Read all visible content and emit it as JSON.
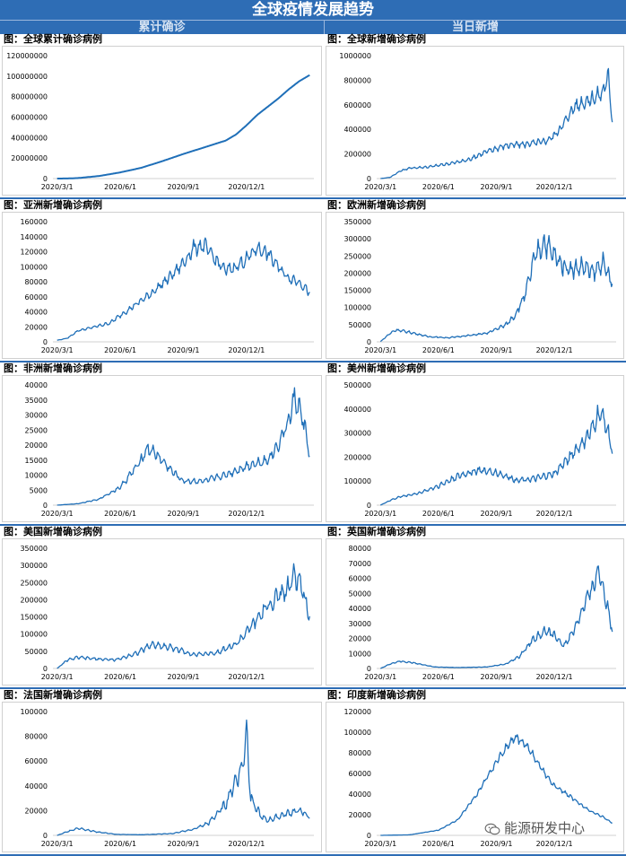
{
  "header": {
    "title": "全球疫情发展趋势",
    "left_section": "累计确诊",
    "right_section": "当日新增"
  },
  "watermark": {
    "text": "能源研发中心",
    "icon": "wechat-icon"
  },
  "colors": {
    "line": "#1f6fb8",
    "header_bg": "#2e6db5"
  },
  "charts": [
    {
      "title": "图：全球累计确诊病例",
      "chart_data": {
        "type": "line",
        "x_ticks": [
          "2020/3/1",
          "2020/6/1",
          "2020/9/1",
          "2020/12/1"
        ],
        "y_ticks": [
          "0",
          "20000000",
          "40000000",
          "60000000",
          "80000000",
          "100000000",
          "120000000"
        ],
        "ylim": [
          0,
          120000000
        ],
        "points": [
          [
            0,
            0
          ],
          [
            0.05,
            90000
          ],
          [
            0.1,
            500000
          ],
          [
            0.2,
            2500000
          ],
          [
            0.3,
            6000000
          ],
          [
            0.4,
            10500000
          ],
          [
            0.5,
            17000000
          ],
          [
            0.6,
            24000000
          ],
          [
            0.7,
            30500000
          ],
          [
            0.8,
            37000000
          ],
          [
            0.85,
            43000000
          ],
          [
            0.9,
            52000000
          ],
          [
            0.95,
            62000000
          ],
          [
            1.0,
            70000000
          ],
          [
            1.05,
            78000000
          ],
          [
            1.1,
            87000000
          ],
          [
            1.15,
            95000000
          ],
          [
            1.2,
            101000000
          ]
        ],
        "noise": 0
      }
    },
    {
      "title": "图：全球新增确诊病例",
      "chart_data": {
        "type": "line",
        "x_ticks": [
          "2020/3/1",
          "2020/6/1",
          "2020/9/1",
          "2020/12/1"
        ],
        "y_ticks": [
          "0",
          "200000",
          "400000",
          "600000",
          "800000",
          "1000000"
        ],
        "ylim": [
          0,
          1000000
        ],
        "points": [
          [
            0,
            0
          ],
          [
            0.05,
            10000
          ],
          [
            0.1,
            60000
          ],
          [
            0.15,
            85000
          ],
          [
            0.25,
            95000
          ],
          [
            0.35,
            120000
          ],
          [
            0.45,
            150000
          ],
          [
            0.55,
            220000
          ],
          [
            0.65,
            270000
          ],
          [
            0.75,
            280000
          ],
          [
            0.85,
            300000
          ],
          [
            0.9,
            350000
          ],
          [
            0.95,
            450000
          ],
          [
            1.0,
            580000
          ],
          [
            1.05,
            620000
          ],
          [
            1.1,
            650000
          ],
          [
            1.15,
            700000
          ],
          [
            1.18,
            830000
          ],
          [
            1.2,
            480000
          ]
        ],
        "noise": 0.12
      }
    },
    {
      "title": "图：亚洲新增确诊病例",
      "chart_data": {
        "type": "line",
        "x_ticks": [
          "2020/3/1",
          "2020/6/1",
          "2020/9/1",
          "2020/12/1"
        ],
        "y_ticks": [
          "0",
          "20000",
          "40000",
          "60000",
          "80000",
          "100000",
          "120000",
          "140000",
          "160000"
        ],
        "ylim": [
          0,
          160000
        ],
        "points": [
          [
            0,
            2000
          ],
          [
            0.05,
            5000
          ],
          [
            0.1,
            15000
          ],
          [
            0.15,
            18000
          ],
          [
            0.25,
            25000
          ],
          [
            0.35,
            45000
          ],
          [
            0.45,
            65000
          ],
          [
            0.55,
            90000
          ],
          [
            0.6,
            105000
          ],
          [
            0.65,
            125000
          ],
          [
            0.7,
            128000
          ],
          [
            0.75,
            110000
          ],
          [
            0.8,
            95000
          ],
          [
            0.85,
            100000
          ],
          [
            0.9,
            110000
          ],
          [
            0.95,
            125000
          ],
          [
            1.0,
            118000
          ],
          [
            1.05,
            100000
          ],
          [
            1.1,
            85000
          ],
          [
            1.15,
            80000
          ],
          [
            1.2,
            65000
          ]
        ],
        "noise": 0.1
      }
    },
    {
      "title": "图：欧洲新增确诊病例",
      "chart_data": {
        "type": "line",
        "x_ticks": [
          "2020/3/1",
          "2020/6/1",
          "2020/9/1",
          "2020/12/1"
        ],
        "y_ticks": [
          "0",
          "50000",
          "100000",
          "150000",
          "200000",
          "250000",
          "300000",
          "350000"
        ],
        "ylim": [
          0,
          350000
        ],
        "points": [
          [
            0,
            1000
          ],
          [
            0.05,
            25000
          ],
          [
            0.08,
            35000
          ],
          [
            0.15,
            28000
          ],
          [
            0.25,
            15000
          ],
          [
            0.35,
            12000
          ],
          [
            0.45,
            18000
          ],
          [
            0.55,
            25000
          ],
          [
            0.65,
            50000
          ],
          [
            0.7,
            80000
          ],
          [
            0.75,
            140000
          ],
          [
            0.8,
            250000
          ],
          [
            0.85,
            290000
          ],
          [
            0.9,
            250000
          ],
          [
            0.95,
            220000
          ],
          [
            1.0,
            210000
          ],
          [
            1.05,
            220000
          ],
          [
            1.1,
            200000
          ],
          [
            1.15,
            230000
          ],
          [
            1.2,
            170000
          ]
        ],
        "noise": 0.15
      }
    },
    {
      "title": "图：非洲新增确诊病例",
      "chart_data": {
        "type": "line",
        "x_ticks": [
          "2020/3/1",
          "2020/6/1",
          "2020/9/1",
          "2020/12/1"
        ],
        "y_ticks": [
          "0",
          "5000",
          "10000",
          "15000",
          "20000",
          "25000",
          "30000",
          "35000",
          "40000"
        ],
        "ylim": [
          0,
          40000
        ],
        "points": [
          [
            0,
            0
          ],
          [
            0.1,
            500
          ],
          [
            0.2,
            2000
          ],
          [
            0.3,
            6000
          ],
          [
            0.38,
            13000
          ],
          [
            0.43,
            19000
          ],
          [
            0.47,
            17000
          ],
          [
            0.55,
            11000
          ],
          [
            0.6,
            8000
          ],
          [
            0.7,
            8000
          ],
          [
            0.8,
            10000
          ],
          [
            0.9,
            13000
          ],
          [
            1.0,
            15000
          ],
          [
            1.05,
            20000
          ],
          [
            1.1,
            28000
          ],
          [
            1.13,
            36000
          ],
          [
            1.17,
            28000
          ],
          [
            1.2,
            17000
          ]
        ],
        "noise": 0.15
      }
    },
    {
      "title": "图：美州新增确诊病例",
      "chart_data": {
        "type": "line",
        "x_ticks": [
          "2020/3/1",
          "2020/6/1",
          "2020/9/1",
          "2020/12/1"
        ],
        "y_ticks": [
          "0",
          "100000",
          "200000",
          "300000",
          "400000",
          "500000"
        ],
        "ylim": [
          0,
          500000
        ],
        "points": [
          [
            0,
            0
          ],
          [
            0.05,
            20000
          ],
          [
            0.1,
            35000
          ],
          [
            0.2,
            50000
          ],
          [
            0.3,
            80000
          ],
          [
            0.4,
            120000
          ],
          [
            0.5,
            145000
          ],
          [
            0.6,
            135000
          ],
          [
            0.7,
            105000
          ],
          [
            0.8,
            110000
          ],
          [
            0.9,
            130000
          ],
          [
            1.0,
            220000
          ],
          [
            1.05,
            260000
          ],
          [
            1.1,
            320000
          ],
          [
            1.13,
            380000
          ],
          [
            1.16,
            360000
          ],
          [
            1.2,
            230000
          ]
        ],
        "noise": 0.14
      }
    },
    {
      "title": "图：美国新增确诊病例",
      "chart_data": {
        "type": "line",
        "x_ticks": [
          "2020/3/1",
          "2020/6/1",
          "2020/9/1",
          "2020/12/1"
        ],
        "y_ticks": [
          "0",
          "50000",
          "100000",
          "150000",
          "200000",
          "250000",
          "300000",
          "350000"
        ],
        "ylim": [
          0,
          350000
        ],
        "points": [
          [
            0,
            0
          ],
          [
            0.05,
            25000
          ],
          [
            0.1,
            32000
          ],
          [
            0.18,
            28000
          ],
          [
            0.28,
            25000
          ],
          [
            0.38,
            45000
          ],
          [
            0.45,
            70000
          ],
          [
            0.55,
            60000
          ],
          [
            0.65,
            40000
          ],
          [
            0.75,
            45000
          ],
          [
            0.85,
            70000
          ],
          [
            0.92,
            120000
          ],
          [
            1.0,
            180000
          ],
          [
            1.05,
            210000
          ],
          [
            1.1,
            230000
          ],
          [
            1.13,
            280000
          ],
          [
            1.16,
            240000
          ],
          [
            1.2,
            150000
          ]
        ],
        "noise": 0.18
      }
    },
    {
      "title": "图：英国新增确诊病例",
      "chart_data": {
        "type": "line",
        "x_ticks": [
          "2020/3/1",
          "2020/6/1",
          "2020/9/1",
          "2020/12/1"
        ],
        "y_ticks": [
          "0",
          "10000",
          "20000",
          "30000",
          "40000",
          "50000",
          "60000",
          "70000",
          "80000"
        ],
        "ylim": [
          0,
          80000
        ],
        "points": [
          [
            0,
            0
          ],
          [
            0.05,
            3000
          ],
          [
            0.1,
            5000
          ],
          [
            0.18,
            3500
          ],
          [
            0.28,
            1000
          ],
          [
            0.4,
            600
          ],
          [
            0.55,
            1000
          ],
          [
            0.65,
            3000
          ],
          [
            0.72,
            8000
          ],
          [
            0.78,
            18000
          ],
          [
            0.85,
            25000
          ],
          [
            0.9,
            22000
          ],
          [
            0.95,
            15000
          ],
          [
            1.0,
            25000
          ],
          [
            1.05,
            40000
          ],
          [
            1.1,
            55000
          ],
          [
            1.13,
            65000
          ],
          [
            1.17,
            45000
          ],
          [
            1.2,
            25000
          ]
        ],
        "noise": 0.15
      }
    },
    {
      "title": "图：法国新增确诊病例",
      "chart_data": {
        "type": "line",
        "x_ticks": [
          "2020/3/1",
          "2020/6/1",
          "2020/9/1",
          "2020/12/1"
        ],
        "y_ticks": [
          "0",
          "20000",
          "40000",
          "60000",
          "80000",
          "100000"
        ],
        "ylim": [
          0,
          100000
        ],
        "points": [
          [
            0,
            0
          ],
          [
            0.05,
            3000
          ],
          [
            0.1,
            6000
          ],
          [
            0.18,
            3000
          ],
          [
            0.28,
            800
          ],
          [
            0.4,
            500
          ],
          [
            0.55,
            1500
          ],
          [
            0.65,
            5000
          ],
          [
            0.72,
            10000
          ],
          [
            0.8,
            25000
          ],
          [
            0.85,
            45000
          ],
          [
            0.88,
            55000
          ],
          [
            0.9,
            86000
          ],
          [
            0.92,
            30000
          ],
          [
            0.97,
            15000
          ],
          [
            1.0,
            12000
          ],
          [
            1.05,
            15000
          ],
          [
            1.1,
            18000
          ],
          [
            1.15,
            20000
          ],
          [
            1.2,
            15000
          ]
        ],
        "noise": 0.2
      }
    },
    {
      "title": "图：印度新增确诊病例",
      "chart_data": {
        "type": "line",
        "x_ticks": [
          "2020/3/1",
          "2020/6/1",
          "2020/9/1",
          "2020/12/1"
        ],
        "y_ticks": [
          "0",
          "20000",
          "40000",
          "60000",
          "80000",
          "100000",
          "120000"
        ],
        "ylim": [
          0,
          120000
        ],
        "points": [
          [
            0,
            0
          ],
          [
            0.15,
            500
          ],
          [
            0.3,
            5000
          ],
          [
            0.4,
            15000
          ],
          [
            0.5,
            40000
          ],
          [
            0.58,
            65000
          ],
          [
            0.65,
            85000
          ],
          [
            0.7,
            95000
          ],
          [
            0.75,
            88000
          ],
          [
            0.8,
            75000
          ],
          [
            0.85,
            60000
          ],
          [
            0.9,
            48000
          ],
          [
            0.95,
            42000
          ],
          [
            1.0,
            35000
          ],
          [
            1.05,
            28000
          ],
          [
            1.1,
            22000
          ],
          [
            1.15,
            18000
          ],
          [
            1.2,
            12000
          ]
        ],
        "noise": 0.06
      }
    }
  ]
}
